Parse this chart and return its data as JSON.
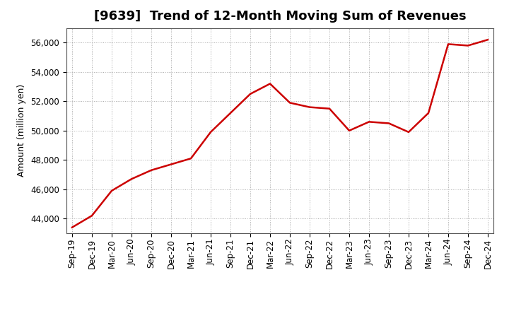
{
  "title": "[9639]  Trend of 12-Month Moving Sum of Revenues",
  "ylabel": "Amount (million yen)",
  "line_color": "#cc0000",
  "background_color": "#ffffff",
  "plot_background_color": "#ffffff",
  "grid_color": "#aaaaaa",
  "x_labels": [
    "Sep-19",
    "Dec-19",
    "Mar-20",
    "Jun-20",
    "Sep-20",
    "Dec-20",
    "Mar-21",
    "Jun-21",
    "Sep-21",
    "Dec-21",
    "Mar-22",
    "Jun-22",
    "Sep-22",
    "Dec-22",
    "Mar-23",
    "Jun-23",
    "Sep-23",
    "Dec-23",
    "Mar-24",
    "Jun-24",
    "Sep-24",
    "Dec-24"
  ],
  "values": [
    43400,
    44200,
    45900,
    46700,
    47300,
    47700,
    48100,
    49900,
    51200,
    52500,
    53200,
    51900,
    51600,
    51500,
    50000,
    50600,
    50500,
    49900,
    51200,
    55900,
    55800,
    56200
  ],
  "ylim": [
    43000,
    57000
  ],
  "yticks": [
    44000,
    46000,
    48000,
    50000,
    52000,
    54000,
    56000
  ],
  "title_fontsize": 13,
  "label_fontsize": 9,
  "tick_fontsize": 8.5
}
